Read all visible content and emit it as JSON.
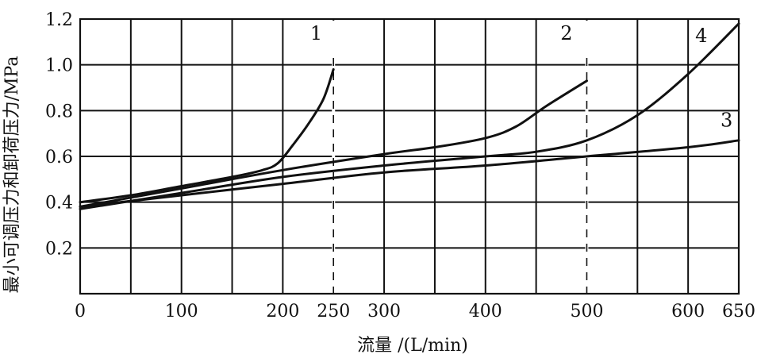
{
  "chart_data": {
    "type": "line",
    "xlabel": "流量 /(L/min)",
    "ylabel": "最小可调压力和卸荷压力/MPa",
    "xlim": [
      0,
      650
    ],
    "ylim": [
      0,
      1.2
    ],
    "x_ticks": [
      0,
      100,
      200,
      250,
      300,
      400,
      500,
      600,
      650
    ],
    "y_ticks": [
      0.2,
      0.4,
      0.6,
      0.8,
      1.0,
      1.2
    ],
    "x_tick_labels": [
      "0",
      "100",
      "200",
      "250",
      "300",
      "400",
      "500",
      "600",
      "650"
    ],
    "y_tick_labels": [
      "0.2",
      "0.4",
      "0.6",
      "0.8",
      "1.0",
      "1.2"
    ],
    "x_gridlines": [
      50,
      100,
      150,
      200,
      250,
      300,
      350,
      400,
      450,
      500,
      550,
      600,
      650
    ],
    "y_gridlines": [
      0.2,
      0.4,
      0.6,
      0.8,
      1.0,
      1.2
    ],
    "dashed_x": [
      250,
      500
    ],
    "grid": true,
    "series": [
      {
        "name": "1",
        "points": [
          [
            0,
            0.4
          ],
          [
            50,
            0.43
          ],
          [
            100,
            0.47
          ],
          [
            150,
            0.51
          ],
          [
            180,
            0.54
          ],
          [
            195,
            0.57
          ],
          [
            210,
            0.65
          ],
          [
            225,
            0.74
          ],
          [
            240,
            0.85
          ],
          [
            250,
            0.98
          ]
        ]
      },
      {
        "name": "2",
        "points": [
          [
            0,
            0.38
          ],
          [
            100,
            0.46
          ],
          [
            200,
            0.54
          ],
          [
            300,
            0.61
          ],
          [
            350,
            0.64
          ],
          [
            400,
            0.68
          ],
          [
            430,
            0.73
          ],
          [
            460,
            0.82
          ],
          [
            500,
            0.93
          ]
        ]
      },
      {
        "name": "3",
        "points": [
          [
            0,
            0.38
          ],
          [
            100,
            0.43
          ],
          [
            200,
            0.48
          ],
          [
            300,
            0.53
          ],
          [
            400,
            0.56
          ],
          [
            500,
            0.6
          ],
          [
            600,
            0.64
          ],
          [
            650,
            0.67
          ]
        ]
      },
      {
        "name": "4",
        "points": [
          [
            0,
            0.37
          ],
          [
            100,
            0.44
          ],
          [
            200,
            0.51
          ],
          [
            300,
            0.56
          ],
          [
            400,
            0.6
          ],
          [
            450,
            0.62
          ],
          [
            500,
            0.67
          ],
          [
            550,
            0.78
          ],
          [
            600,
            0.96
          ],
          [
            650,
            1.18
          ]
        ]
      }
    ],
    "annotations": [
      {
        "text": "1",
        "x": 233,
        "y": 1.11
      },
      {
        "text": "2",
        "x": 480,
        "y": 1.11
      },
      {
        "text": "3",
        "x": 638,
        "y": 0.73
      },
      {
        "text": "4",
        "x": 613,
        "y": 1.1
      }
    ]
  }
}
